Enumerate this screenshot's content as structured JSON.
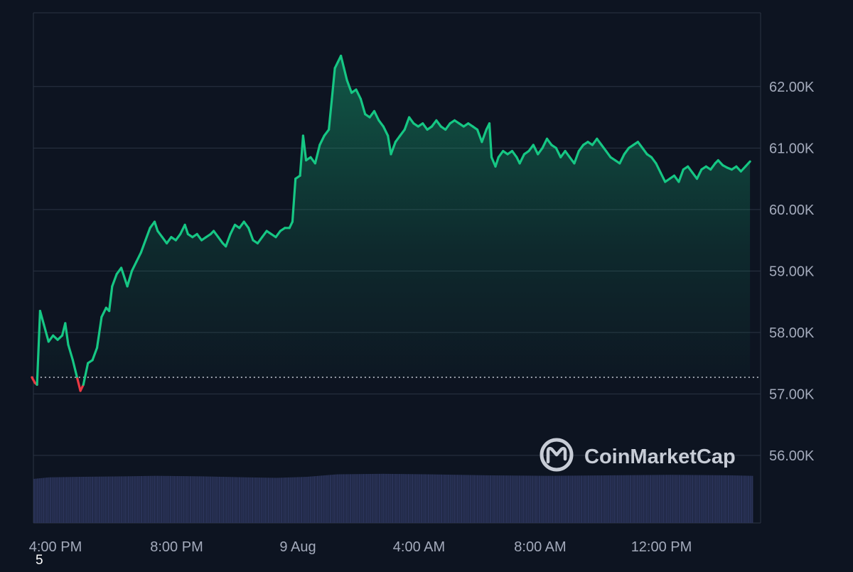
{
  "chart_data": {
    "type": "area",
    "title": "",
    "xlabel": "",
    "ylabel": "",
    "grid": true,
    "legend": "none",
    "y_axis_side": "right",
    "ylim": [
      54.9,
      63.2
    ],
    "y_ticks": [
      {
        "value": 56,
        "label": "56.00K"
      },
      {
        "value": 57,
        "label": "57.00K"
      },
      {
        "value": 58,
        "label": "58.00K"
      },
      {
        "value": 59,
        "label": "59.00K"
      },
      {
        "value": 60,
        "label": "60.00K"
      },
      {
        "value": 61,
        "label": "61.00K"
      },
      {
        "value": 62,
        "label": "62.00K"
      }
    ],
    "x_ticks": [
      {
        "hour": 0,
        "label": "4:00 PM"
      },
      {
        "hour": 4,
        "label": "8:00 PM"
      },
      {
        "hour": 8,
        "label": "9 Aug"
      },
      {
        "hour": 12,
        "label": "4:00 AM"
      },
      {
        "hour": 16,
        "label": "8:00 AM"
      },
      {
        "hour": 20,
        "label": "12:00 PM"
      }
    ],
    "xlim_hours": [
      0,
      24
    ],
    "reference_price": 57.27,
    "colors": {
      "up": "#16c784",
      "down": "#ea3943",
      "volume": "#2a3358",
      "grid": "#2b3343",
      "reference_line": "#c9ced9"
    },
    "series": [
      {
        "points": [
          [
            -0.05,
            57.27
          ],
          [
            0.05,
            57.18
          ],
          [
            0.12,
            57.15
          ],
          [
            0.22,
            58.35
          ],
          [
            0.35,
            58.12
          ],
          [
            0.5,
            57.85
          ],
          [
            0.65,
            57.95
          ],
          [
            0.8,
            57.88
          ],
          [
            0.95,
            57.95
          ],
          [
            1.05,
            58.15
          ],
          [
            1.15,
            57.8
          ],
          [
            1.3,
            57.55
          ],
          [
            1.45,
            57.25
          ],
          [
            1.55,
            57.05
          ],
          [
            1.65,
            57.15
          ],
          [
            1.8,
            57.5
          ],
          [
            1.95,
            57.55
          ],
          [
            2.1,
            57.75
          ],
          [
            2.25,
            58.25
          ],
          [
            2.4,
            58.4
          ],
          [
            2.5,
            58.35
          ],
          [
            2.6,
            58.75
          ],
          [
            2.75,
            58.95
          ],
          [
            2.9,
            59.05
          ],
          [
            3.0,
            58.9
          ],
          [
            3.1,
            58.75
          ],
          [
            3.25,
            59.0
          ],
          [
            3.4,
            59.15
          ],
          [
            3.55,
            59.3
          ],
          [
            3.7,
            59.5
          ],
          [
            3.85,
            59.7
          ],
          [
            4.0,
            59.8
          ],
          [
            4.1,
            59.65
          ],
          [
            4.25,
            59.55
          ],
          [
            4.4,
            59.45
          ],
          [
            4.55,
            59.55
          ],
          [
            4.7,
            59.5
          ],
          [
            4.85,
            59.6
          ],
          [
            5.0,
            59.75
          ],
          [
            5.1,
            59.6
          ],
          [
            5.25,
            59.55
          ],
          [
            5.4,
            59.6
          ],
          [
            5.55,
            59.5
          ],
          [
            5.7,
            59.55
          ],
          [
            5.85,
            59.6
          ],
          [
            5.95,
            59.65
          ],
          [
            6.1,
            59.55
          ],
          [
            6.25,
            59.45
          ],
          [
            6.35,
            59.4
          ],
          [
            6.5,
            59.6
          ],
          [
            6.65,
            59.75
          ],
          [
            6.8,
            59.7
          ],
          [
            6.95,
            59.8
          ],
          [
            7.1,
            59.7
          ],
          [
            7.25,
            59.5
          ],
          [
            7.4,
            59.45
          ],
          [
            7.55,
            59.55
          ],
          [
            7.7,
            59.65
          ],
          [
            7.85,
            59.6
          ],
          [
            8.0,
            59.55
          ],
          [
            8.15,
            59.65
          ],
          [
            8.3,
            59.7
          ],
          [
            8.45,
            59.7
          ],
          [
            8.55,
            59.8
          ],
          [
            8.65,
            60.5
          ],
          [
            8.8,
            60.55
          ],
          [
            8.9,
            61.2
          ],
          [
            9.0,
            60.8
          ],
          [
            9.15,
            60.85
          ],
          [
            9.3,
            60.75
          ],
          [
            9.45,
            61.05
          ],
          [
            9.6,
            61.2
          ],
          [
            9.75,
            61.3
          ],
          [
            9.85,
            61.8
          ],
          [
            9.95,
            62.3
          ],
          [
            10.05,
            62.4
          ],
          [
            10.15,
            62.5
          ],
          [
            10.25,
            62.3
          ],
          [
            10.35,
            62.1
          ],
          [
            10.5,
            61.9
          ],
          [
            10.65,
            61.95
          ],
          [
            10.8,
            61.8
          ],
          [
            10.95,
            61.55
          ],
          [
            11.1,
            61.5
          ],
          [
            11.25,
            61.6
          ],
          [
            11.4,
            61.45
          ],
          [
            11.55,
            61.35
          ],
          [
            11.7,
            61.2
          ],
          [
            11.8,
            60.9
          ],
          [
            11.95,
            61.1
          ],
          [
            12.1,
            61.2
          ],
          [
            12.25,
            61.3
          ],
          [
            12.4,
            61.5
          ],
          [
            12.55,
            61.4
          ],
          [
            12.7,
            61.35
          ],
          [
            12.85,
            61.4
          ],
          [
            13.0,
            61.3
          ],
          [
            13.15,
            61.35
          ],
          [
            13.3,
            61.45
          ],
          [
            13.45,
            61.35
          ],
          [
            13.6,
            61.3
          ],
          [
            13.75,
            61.4
          ],
          [
            13.9,
            61.45
          ],
          [
            14.05,
            61.4
          ],
          [
            14.2,
            61.35
          ],
          [
            14.35,
            61.4
          ],
          [
            14.5,
            61.35
          ],
          [
            14.65,
            61.3
          ],
          [
            14.8,
            61.1
          ],
          [
            14.95,
            61.3
          ],
          [
            15.05,
            61.4
          ],
          [
            15.12,
            60.85
          ],
          [
            15.25,
            60.7
          ],
          [
            15.35,
            60.85
          ],
          [
            15.5,
            60.95
          ],
          [
            15.65,
            60.9
          ],
          [
            15.8,
            60.95
          ],
          [
            15.95,
            60.85
          ],
          [
            16.05,
            60.75
          ],
          [
            16.2,
            60.9
          ],
          [
            16.35,
            60.95
          ],
          [
            16.5,
            61.05
          ],
          [
            16.65,
            60.9
          ],
          [
            16.8,
            61.0
          ],
          [
            16.95,
            61.15
          ],
          [
            17.1,
            61.05
          ],
          [
            17.25,
            61.0
          ],
          [
            17.4,
            60.85
          ],
          [
            17.55,
            60.95
          ],
          [
            17.7,
            60.85
          ],
          [
            17.85,
            60.75
          ],
          [
            18.0,
            60.95
          ],
          [
            18.15,
            61.05
          ],
          [
            18.3,
            61.1
          ],
          [
            18.45,
            61.05
          ],
          [
            18.6,
            61.15
          ],
          [
            18.75,
            61.05
          ],
          [
            18.9,
            60.95
          ],
          [
            19.05,
            60.85
          ],
          [
            19.2,
            60.8
          ],
          [
            19.35,
            60.75
          ],
          [
            19.5,
            60.9
          ],
          [
            19.65,
            61.0
          ],
          [
            19.8,
            61.05
          ],
          [
            19.95,
            61.1
          ],
          [
            20.1,
            61.0
          ],
          [
            20.25,
            60.9
          ],
          [
            20.4,
            60.85
          ],
          [
            20.55,
            60.75
          ],
          [
            20.7,
            60.6
          ],
          [
            20.85,
            60.45
          ],
          [
            21.0,
            60.5
          ],
          [
            21.15,
            60.55
          ],
          [
            21.3,
            60.45
          ],
          [
            21.45,
            60.65
          ],
          [
            21.6,
            60.7
          ],
          [
            21.75,
            60.6
          ],
          [
            21.9,
            60.5
          ],
          [
            22.05,
            60.65
          ],
          [
            22.2,
            60.7
          ],
          [
            22.35,
            60.65
          ],
          [
            22.5,
            60.75
          ],
          [
            22.6,
            60.8
          ],
          [
            22.75,
            60.72
          ],
          [
            22.9,
            60.68
          ],
          [
            23.05,
            60.65
          ],
          [
            23.2,
            60.7
          ],
          [
            23.35,
            60.62
          ],
          [
            23.5,
            60.7
          ],
          [
            23.65,
            60.78
          ]
        ]
      }
    ],
    "volume": {
      "unit": "relative",
      "levels": [
        [
          0.0,
          0.44
        ],
        [
          0.5,
          0.455
        ],
        [
          1.5,
          0.46
        ],
        [
          3.0,
          0.465
        ],
        [
          4.0,
          0.47
        ],
        [
          5.5,
          0.465
        ],
        [
          7.0,
          0.455
        ],
        [
          8.0,
          0.45
        ],
        [
          9.0,
          0.46
        ],
        [
          10.0,
          0.485
        ],
        [
          11.5,
          0.49
        ],
        [
          13.0,
          0.485
        ],
        [
          15.0,
          0.475
        ],
        [
          17.0,
          0.47
        ],
        [
          19.0,
          0.475
        ],
        [
          21.0,
          0.48
        ],
        [
          23.0,
          0.475
        ],
        [
          23.7,
          0.47
        ]
      ]
    }
  },
  "brand": {
    "watermark_text": "CoinMarketCap",
    "logo_icon": "coinmarketcap-logo-icon"
  },
  "stray_label": "5"
}
